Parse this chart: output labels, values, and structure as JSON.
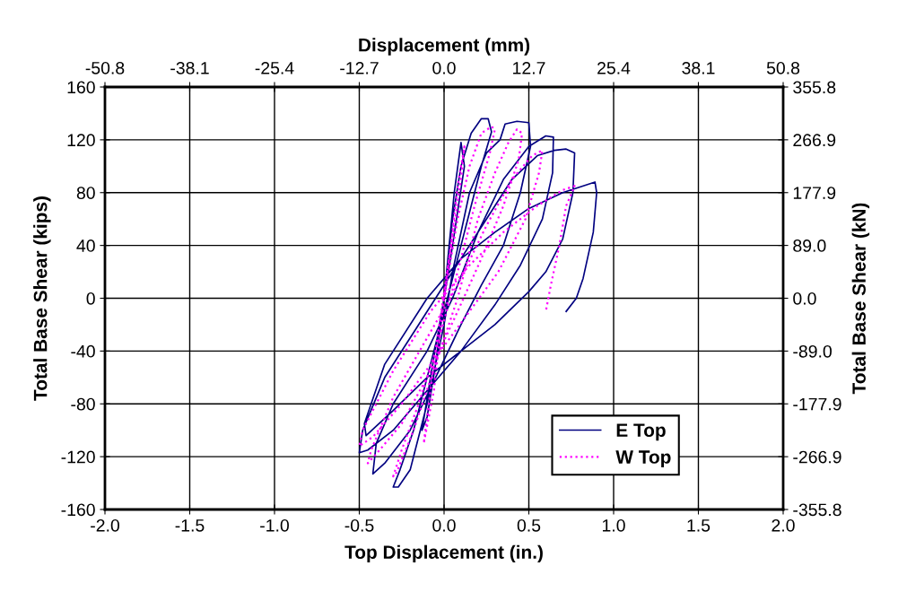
{
  "chart_data": {
    "type": "line",
    "xlabel": "Top Displacement (in.)",
    "ylabel": "Total Base Shear (kips)",
    "y2label": "Total Base Shear (kN)",
    "x2label": "Displacement (mm)",
    "xlim": [
      -2.0,
      2.0
    ],
    "xticks": [
      {
        "value": -2,
        "label": "-2.0"
      },
      -1.5,
      {
        "value": -1,
        "label": "-1.0"
      },
      -0.5,
      {
        "value": 0,
        "label": "0.0"
      },
      0.5,
      {
        "value": 1,
        "label": "1.0"
      },
      1.5,
      {
        "value": 2,
        "label": "2.0"
      }
    ],
    "ylim": [
      -160,
      160
    ],
    "yticks": [
      -160,
      -120,
      -80,
      -40,
      0,
      40,
      80,
      120,
      160
    ],
    "x2lim": [
      -50.8,
      50.8
    ],
    "x2ticks": [
      -50.8,
      -38.1,
      -25.4,
      -12.7,
      {
        "value": 0,
        "label": "0.0"
      },
      12.7,
      25.4,
      38.1,
      50.8
    ],
    "y2lim": [
      -355.8,
      355.8
    ],
    "y2ticks": [
      -355.8,
      -266.9,
      -177.9,
      {
        "value": -89,
        "label": "-89.0"
      },
      {
        "value": 0,
        "label": "0.0"
      },
      {
        "value": 89,
        "label": "89.0"
      },
      177.9,
      266.9,
      355.8
    ],
    "grid": true,
    "legend": "bottom right",
    "series": [
      {
        "name": "E Top",
        "color": "#000080",
        "line_style": "solid",
        "x": [
          0,
          0.03,
          0.06,
          0.1,
          0.12,
          0.05,
          0,
          -0.05,
          -0.1,
          -0.13,
          -0.08,
          0,
          0.05,
          0.1,
          0.16,
          0.22,
          0.26,
          0.28,
          0.22,
          0.12,
          0.02,
          -0.08,
          -0.18,
          -0.26,
          -0.3,
          -0.27,
          -0.2,
          -0.1,
          0,
          0.05,
          0.15,
          0.25,
          0.33,
          0.36,
          0.43,
          0.5,
          0.51,
          0.45,
          0.35,
          0.22,
          0.1,
          -0.05,
          -0.2,
          -0.35,
          -0.42,
          -0.4,
          -0.3,
          -0.1,
          0.05,
          0.2,
          0.35,
          0.5,
          0.6,
          0.645,
          0.64,
          0.58,
          0.45,
          0.3,
          0.1,
          -0.1,
          -0.3,
          -0.45,
          -0.5,
          -0.48,
          -0.35,
          -0.15,
          0.05,
          0.25,
          0.4,
          0.55,
          0.65,
          0.72,
          0.77,
          0.76,
          0.7,
          0.6,
          0.5,
          0.3,
          0.1,
          -0.1,
          -0.3,
          -0.46,
          -0.47,
          -0.35,
          -0.1,
          0.1,
          0.3,
          0.5,
          0.7,
          0.89,
          0.9,
          0.88,
          0.82,
          0.78,
          0.72
        ],
        "values": [
          0,
          40,
          80,
          118,
          100,
          40,
          0,
          -50,
          -90,
          -100,
          -60,
          0,
          60,
          100,
          125,
          136,
          136,
          126,
          100,
          50,
          0,
          -50,
          -100,
          -130,
          -143,
          -143,
          -130,
          -80,
          -20,
          20,
          80,
          110,
          120,
          132,
          134,
          133,
          115,
          80,
          40,
          10,
          -20,
          -60,
          -100,
          -125,
          -133,
          -110,
          -80,
          -40,
          0,
          50,
          90,
          115,
          123,
          122,
          95,
          60,
          25,
          -5,
          -40,
          -70,
          -100,
          -115,
          -117,
          -100,
          -60,
          -20,
          20,
          60,
          90,
          108,
          112,
          113,
          110,
          80,
          45,
          20,
          5,
          -20,
          -40,
          -60,
          -85,
          -104,
          -95,
          -50,
          0,
          30,
          50,
          68,
          80,
          88,
          80,
          50,
          15,
          0,
          -10
        ]
      },
      {
        "name": "W Top",
        "color": "#ff00ff",
        "line_style": "dotted",
        "x": [
          0,
          0.04,
          0.08,
          0.12,
          0.1,
          0.03,
          -0.04,
          -0.09,
          -0.12,
          -0.06,
          0,
          0.08,
          0.15,
          0.22,
          0.28,
          0.3,
          0.27,
          0.18,
          0.08,
          -0.05,
          -0.15,
          -0.25,
          -0.3,
          -0.28,
          -0.18,
          -0.05,
          0.08,
          0.2,
          0.3,
          0.38,
          0.43,
          0.46,
          0.44,
          0.35,
          0.22,
          0.08,
          -0.1,
          -0.25,
          -0.38,
          -0.45,
          -0.43,
          -0.3,
          -0.1,
          0.08,
          0.25,
          0.4,
          0.52,
          0.58,
          0.56,
          0.48,
          0.32,
          0.15,
          -0.05,
          -0.25,
          -0.42,
          -0.5,
          -0.48,
          -0.3,
          -0.08,
          0.15,
          0.35,
          0.55,
          0.7,
          0.77,
          0.72,
          0.68,
          0.63,
          0.6
        ],
        "values": [
          0,
          40,
          85,
          115,
          90,
          30,
          -30,
          -80,
          -110,
          -70,
          0,
          60,
          100,
          125,
          130,
          128,
          110,
          70,
          20,
          -40,
          -80,
          -115,
          -135,
          -132,
          -100,
          -50,
          0,
          60,
          95,
          118,
          128,
          125,
          105,
          70,
          30,
          -10,
          -60,
          -95,
          -115,
          -125,
          -115,
          -75,
          -30,
          10,
          55,
          90,
          108,
          112,
          95,
          60,
          20,
          -10,
          -45,
          -80,
          -105,
          -112,
          -100,
          -55,
          -10,
          25,
          50,
          70,
          82,
          85,
          70,
          40,
          10,
          -10
        ]
      }
    ]
  }
}
